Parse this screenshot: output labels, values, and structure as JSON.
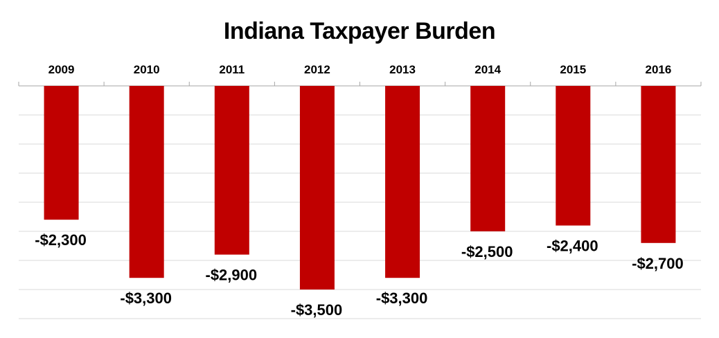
{
  "chart_data": {
    "type": "bar",
    "title": "Indiana Taxpayer Burden",
    "categories": [
      "2009",
      "2010",
      "2011",
      "2012",
      "2013",
      "2014",
      "2015",
      "2016"
    ],
    "values": [
      -2300,
      -3300,
      -2900,
      -3500,
      -3300,
      -2500,
      -2400,
      -2700
    ],
    "data_labels": [
      "-$2,300",
      "-$3,300",
      "-$2,900",
      "-$3,500",
      "-$3,300",
      "-$2,500",
      "-$2,400",
      "-$2,700"
    ],
    "xlabel": "",
    "ylabel": "",
    "ylim": [
      -4000,
      0
    ],
    "grid": true,
    "x_axis_position": "top",
    "legend": "none",
    "bar_color": "#C00000"
  }
}
